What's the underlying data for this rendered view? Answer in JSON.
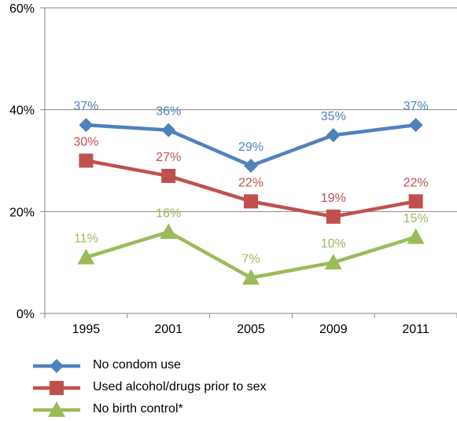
{
  "chart_data": {
    "type": "line",
    "categories": [
      "1995",
      "2001",
      "2005",
      "2009",
      "2011"
    ],
    "ylim": [
      0,
      60
    ],
    "yticks": [
      0,
      20,
      40,
      60
    ],
    "ytick_labels": [
      "0%",
      "20%",
      "40%",
      "60%"
    ],
    "grid": "horizontal",
    "legend_position": "bottom",
    "series": [
      {
        "name": "No condom use",
        "values": [
          37,
          36,
          29,
          35,
          37
        ],
        "labels": [
          "37%",
          "36%",
          "29%",
          "35%",
          "37%"
        ],
        "color": "#4F81BD",
        "label_color": "#4F81BD",
        "marker": "diamond"
      },
      {
        "name": "Used alcohol/drugs prior to sex",
        "values": [
          30,
          27,
          22,
          19,
          22
        ],
        "labels": [
          "30%",
          "27%",
          "22%",
          "19%",
          "22%"
        ],
        "color": "#C0504D",
        "label_color": "#C0504D",
        "marker": "square"
      },
      {
        "name": "No birth control*",
        "values": [
          11,
          16,
          7,
          10,
          15
        ],
        "labels": [
          "11%",
          "16%",
          "7%",
          "10%",
          "15%"
        ],
        "color": "#9BBB59",
        "label_color": "#9BBB59",
        "marker": "triangle"
      }
    ]
  }
}
